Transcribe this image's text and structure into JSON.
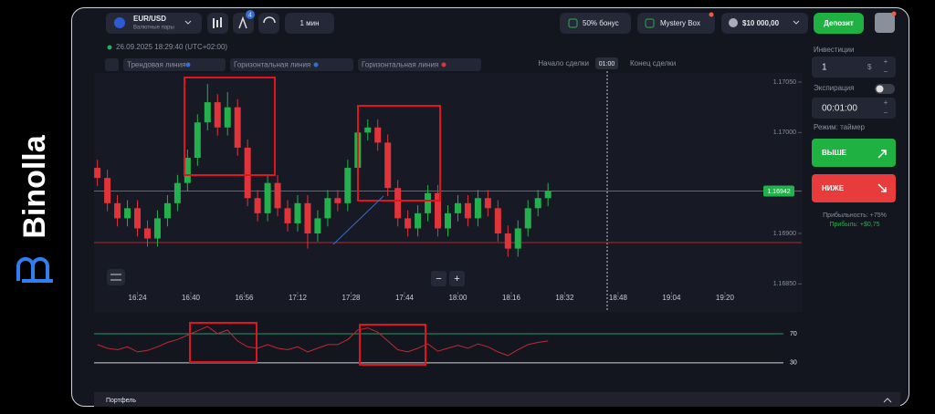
{
  "brand": "Binolla",
  "header": {
    "pair": "EUR/USD",
    "pair_sub": "Валютные пары",
    "badge": 4,
    "timeframe": "1 мин",
    "bonus": "50% бонус",
    "mystery": "Mystery Box",
    "balance": "$10 000,00",
    "deposit": "Депозит"
  },
  "chart_header": {
    "datetime": "26.09.2025 18:29:40 (UTC+02:00)",
    "tools": [
      "Трендовая линия",
      "Горизонтальная линия",
      "Горизонтальная линия"
    ],
    "start": "Начало сделки",
    "timer": "01:00",
    "end": "Конец сделки"
  },
  "zoom": [
    "−",
    "+"
  ],
  "trade_panel": {
    "investment_label": "Инвестиции",
    "investment": 1,
    "currency": "$",
    "plus": "+",
    "minus": "−",
    "expiration_label": "Экспирация",
    "expiration": "00:01:00",
    "mode": "Режим: таймер",
    "up": "ВЫШЕ",
    "down": "НИЖЕ",
    "profitability": "Прибыльность: +75%",
    "profit": "Прибыль: +$0,75"
  },
  "portfolio": "Портфель",
  "chart_data": [
    {
      "type": "candlestick",
      "up_color": "#22b14c",
      "down_color": "#e0343a",
      "x": [
        972,
        975,
        978,
        981,
        984,
        987,
        990,
        993,
        996,
        999,
        1002,
        1005,
        1008,
        1011,
        1014,
        1017,
        1020,
        1023,
        1026,
        1029,
        1032,
        1035,
        1038,
        1041,
        1044,
        1047,
        1050,
        1053,
        1056,
        1059,
        1062,
        1065,
        1068,
        1071,
        1074,
        1077,
        1080,
        1083,
        1086,
        1089,
        1092,
        1095,
        1098,
        1101,
        1104,
        1107
      ],
      "ohlc": [
        [
          1.16965,
          1.16973,
          1.16947,
          1.16955
        ],
        [
          1.16955,
          1.16963,
          1.16922,
          1.1693
        ],
        [
          1.1693,
          1.16938,
          1.16907,
          1.16915
        ],
        [
          1.16915,
          1.16933,
          1.16907,
          1.16925
        ],
        [
          1.16925,
          1.16933,
          1.16897,
          1.16905
        ],
        [
          1.16905,
          1.16913,
          1.16887,
          1.16895
        ],
        [
          1.16895,
          1.16923,
          1.16887,
          1.16915
        ],
        [
          1.16915,
          1.16938,
          1.16907,
          1.1693
        ],
        [
          1.1693,
          1.16958,
          1.16922,
          1.1695
        ],
        [
          1.1695,
          1.16983,
          1.16942,
          1.16975
        ],
        [
          1.16975,
          1.17018,
          1.16967,
          1.1701
        ],
        [
          1.1701,
          1.17048,
          1.17002,
          1.1703
        ],
        [
          1.1703,
          1.17038,
          1.16997,
          1.17005
        ],
        [
          1.17005,
          1.1704,
          1.16997,
          1.17025
        ],
        [
          1.17025,
          1.17033,
          1.16977,
          1.16985
        ],
        [
          1.16985,
          1.16993,
          1.16927,
          1.16935
        ],
        [
          1.16935,
          1.16943,
          1.16912,
          1.1692
        ],
        [
          1.1692,
          1.16958,
          1.16912,
          1.1695
        ],
        [
          1.1695,
          1.16958,
          1.16917,
          1.16925
        ],
        [
          1.16925,
          1.16933,
          1.16902,
          1.1691
        ],
        [
          1.1691,
          1.16938,
          1.16902,
          1.1693
        ],
        [
          1.1693,
          1.16938,
          1.16885,
          1.169
        ],
        [
          1.169,
          1.16923,
          1.16892,
          1.16915
        ],
        [
          1.16915,
          1.16943,
          1.16907,
          1.16935
        ],
        [
          1.16935,
          1.16943,
          1.16922,
          1.1693
        ],
        [
          1.1693,
          1.16973,
          1.16922,
          1.16965
        ],
        [
          1.16965,
          1.17008,
          1.16957,
          1.17
        ],
        [
          1.17,
          1.17013,
          1.16992,
          1.17005
        ],
        [
          1.17005,
          1.17013,
          1.16982,
          1.1699
        ],
        [
          1.1699,
          1.16998,
          1.16937,
          1.16945
        ],
        [
          1.16945,
          1.16953,
          1.16907,
          1.16915
        ],
        [
          1.16915,
          1.16923,
          1.16897,
          1.16905
        ],
        [
          1.16905,
          1.16928,
          1.16897,
          1.1692
        ],
        [
          1.1692,
          1.16948,
          1.16912,
          1.1694
        ],
        [
          1.1694,
          1.16948,
          1.16897,
          1.16905
        ],
        [
          1.16905,
          1.16928,
          1.16897,
          1.1692
        ],
        [
          1.1692,
          1.16938,
          1.16912,
          1.1693
        ],
        [
          1.1693,
          1.16938,
          1.16907,
          1.16915
        ],
        [
          1.16915,
          1.16943,
          1.16907,
          1.16935
        ],
        [
          1.16935,
          1.16943,
          1.16917,
          1.16925
        ],
        [
          1.16925,
          1.16933,
          1.16892,
          1.169
        ],
        [
          1.169,
          1.16908,
          1.16877,
          1.16885
        ],
        [
          1.16885,
          1.16913,
          1.16877,
          1.16905
        ],
        [
          1.16905,
          1.16933,
          1.16897,
          1.16925
        ],
        [
          1.16925,
          1.16943,
          1.16917,
          1.16935
        ],
        [
          1.16935,
          1.1695,
          1.16927,
          1.16942
        ]
      ],
      "xlim": [
        971,
        1183
      ],
      "ylim": [
        1.16844,
        1.17059
      ],
      "xticks": [
        {
          "value": 984,
          "label": "16:24"
        },
        {
          "value": 1000,
          "label": "16:40"
        },
        {
          "value": 1016,
          "label": "16:56"
        },
        {
          "value": 1032,
          "label": "17:12"
        },
        {
          "value": 1048,
          "label": "17:28"
        },
        {
          "value": 1064,
          "label": "17:44"
        },
        {
          "value": 1080,
          "label": "18:00"
        },
        {
          "value": 1096,
          "label": "18:16"
        },
        {
          "value": 1112,
          "label": "18:32"
        },
        {
          "value": 1128,
          "label": "18:48"
        },
        {
          "value": 1144,
          "label": "19:04"
        },
        {
          "value": 1160,
          "label": "19:20"
        }
      ],
      "yticks": [
        {
          "value": 1.1685,
          "label": "1.16850"
        },
        {
          "value": 1.169,
          "label": "1.16900"
        },
        {
          "value": 1.17,
          "label": "1.17000"
        },
        {
          "value": 1.1705,
          "label": "1.17050"
        }
      ],
      "levels": [
        {
          "value": 1.16942,
          "color": "#2f6fd6"
        },
        {
          "value": 1.16891,
          "color": "#b3262c"
        }
      ]
    },
    {
      "type": "line",
      "color": "#c0292f",
      "x": [
        972,
        975,
        978,
        981,
        984,
        987,
        990,
        993,
        996,
        999,
        1002,
        1005,
        1008,
        1011,
        1014,
        1017,
        1020,
        1023,
        1026,
        1029,
        1032,
        1035,
        1038,
        1041,
        1044,
        1047,
        1050,
        1053,
        1056,
        1059,
        1062,
        1065,
        1068,
        1071,
        1074,
        1077,
        1080,
        1083,
        1086,
        1089,
        1092,
        1095,
        1098,
        1101,
        1104,
        1107
      ],
      "values": [
        55,
        50,
        48,
        52,
        45,
        47,
        52,
        58,
        62,
        68,
        74,
        80,
        70,
        75,
        60,
        52,
        50,
        55,
        50,
        48,
        52,
        45,
        50,
        55,
        55,
        62,
        75,
        78,
        72,
        60,
        48,
        45,
        50,
        56,
        46,
        50,
        54,
        50,
        56,
        52,
        45,
        40,
        48,
        55,
        58,
        60
      ],
      "xlim": [
        971,
        1183
      ],
      "ylim": [
        21,
        90
      ],
      "yticks": [
        30,
        70
      ],
      "grid_colors": [
        "#d0d0d0",
        "#1f9a6a"
      ]
    }
  ]
}
